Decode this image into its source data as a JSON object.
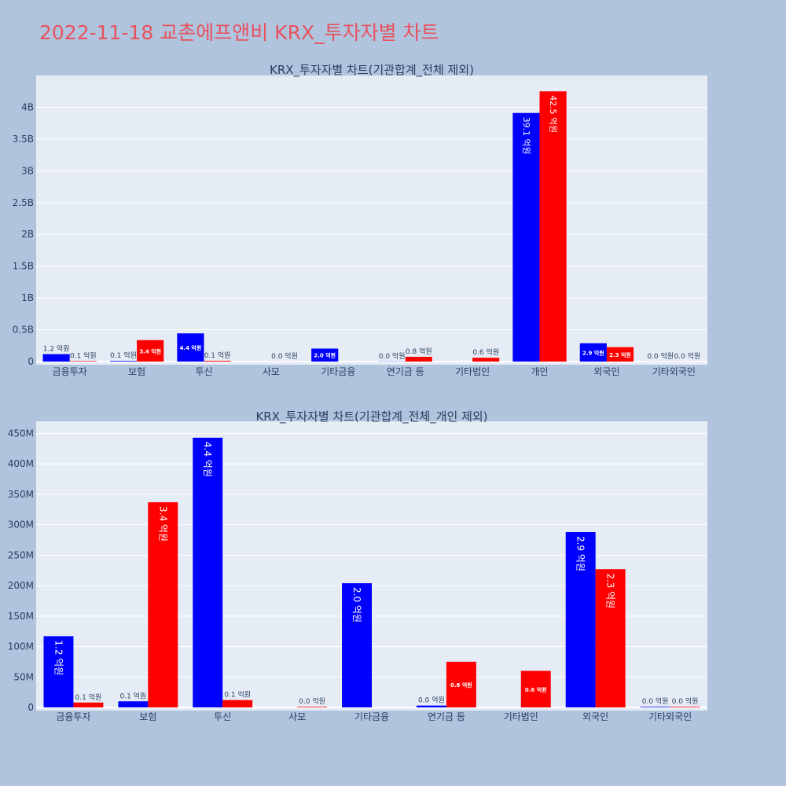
{
  "page_title": "2022-11-18 교촌에프앤비 KRX_투자자별 차트",
  "colors": {
    "buy": "#0000ff",
    "sell": "#ff0000",
    "plot_bg": "#e5ecf6",
    "page_bg": "#b0c4de",
    "title": "#e8525f"
  },
  "chart_data": [
    {
      "type": "bar",
      "title": "KRX_투자자별 차트(기관합계_전체 제외)",
      "categories": [
        "금융투자",
        "보험",
        "투신",
        "사모",
        "기타금융",
        "연기금 등",
        "기타법인",
        "개인",
        "외국인",
        "기타외국인"
      ],
      "series": [
        {
          "values": [
            117000000,
            10000000,
            443000000,
            0,
            204000000,
            3000000,
            0,
            3910000000,
            288000000,
            1000000
          ],
          "labels": [
            "1.2 억원",
            "0.1 억원",
            "4.4 억원",
            "",
            "2.0 억원",
            "0.0 억원",
            "",
            "39.1 억원",
            "2.9 억원",
            "0.0 억원"
          ]
        },
        {
          "values": [
            8000000,
            337000000,
            12000000,
            1000000,
            0,
            75000000,
            60000000,
            4250000000,
            227000000,
            1000000
          ],
          "labels": [
            "0.1 억원",
            "3.4 억원",
            "0.1 억원",
            "0.0 억원",
            "",
            "0.8 억원",
            "0.6 억원",
            "42.5 억원",
            "2.3 억원",
            "0.0 억원"
          ]
        }
      ],
      "ylim": [
        0,
        4500000000
      ],
      "yticks": [
        0,
        500000000,
        1000000000,
        1500000000,
        2000000000,
        2500000000,
        3000000000,
        3500000000,
        4000000000
      ],
      "ytick_labels": [
        "0",
        "0.5B",
        "1B",
        "1.5B",
        "2B",
        "2.5B",
        "3B",
        "3.5B",
        "4B"
      ],
      "grid": true
    },
    {
      "type": "bar",
      "title": "KRX_투자자별 차트(기관합계_전체_개인 제외)",
      "categories": [
        "금융투자",
        "보험",
        "투신",
        "사모",
        "기타금융",
        "연기금 등",
        "기타법인",
        "외국인",
        "기타외국인"
      ],
      "series": [
        {
          "values": [
            117000000,
            10000000,
            443000000,
            0,
            204000000,
            3000000,
            0,
            288000000,
            1000000
          ],
          "labels": [
            "1.2 억원",
            "0.1 억원",
            "4.4 억원",
            "",
            "2.0 억원",
            "0.0 억원",
            "",
            "2.9 억원",
            "0.0 억원"
          ]
        },
        {
          "values": [
            8000000,
            337000000,
            12000000,
            1000000,
            0,
            75000000,
            60000000,
            227000000,
            1000000
          ],
          "labels": [
            "0.1 억원",
            "3.4 억원",
            "0.1 억원",
            "0.0 억원",
            "",
            "0.8 억원",
            "0.6 억원",
            "2.3 억원",
            "0.0 억원"
          ]
        }
      ],
      "ylim": [
        0,
        470000000
      ],
      "yticks": [
        0,
        50000000,
        100000000,
        150000000,
        200000000,
        250000000,
        300000000,
        350000000,
        400000000,
        450000000
      ],
      "ytick_labels": [
        "0",
        "50M",
        "100M",
        "150M",
        "200M",
        "250M",
        "300M",
        "350M",
        "400M",
        "450M"
      ],
      "grid": true
    }
  ]
}
